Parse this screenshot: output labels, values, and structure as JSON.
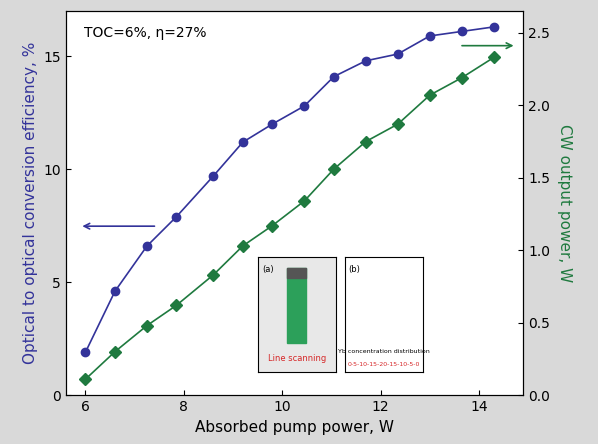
{
  "chart_data": {
    "type": "line",
    "annotations": [
      {
        "text": "TOC=6%, η=27%"
      },
      {
        "text": "(a)"
      },
      {
        "text": "Line scanning",
        "color": "#d62728"
      },
      {
        "text": "(b)"
      },
      {
        "text": "Yb concentration distribution"
      },
      {
        "text": "0-5-10-15-20-15-10-5-0",
        "color": "#d62728"
      }
    ],
    "x_label": "Absorbed pump power, W",
    "y_label": "Optical to optical conversion efficiency, %",
    "y2_label": "CW output power, W",
    "x": [
      6.0,
      6.6,
      7.25,
      7.85,
      8.6,
      9.2,
      9.8,
      10.45,
      11.05,
      11.7,
      12.35,
      13.0,
      13.65,
      14.3
    ],
    "series": [
      {
        "name": "Optical to optical conversion efficiency, %",
        "color": "#33339a",
        "marker": "circle",
        "line_style": "solid",
        "values": [
          1.9,
          4.6,
          6.6,
          7.9,
          9.7,
          11.2,
          12.0,
          12.8,
          14.1,
          14.8,
          15.1,
          15.9,
          16.1,
          16.3
        ]
      },
      {
        "name": "CW output power, W",
        "color": "#1f7a3f",
        "marker": "diamond",
        "line_style": "solid",
        "axis": "y2",
        "values": [
          0.11,
          0.3,
          0.48,
          0.62,
          0.83,
          1.03,
          1.17,
          1.34,
          1.56,
          1.75,
          1.87,
          2.07,
          2.19,
          2.33
        ]
      }
    ],
    "xlim": [
      5.6,
      14.9
    ],
    "xticks": [
      6,
      8,
      10,
      12,
      14
    ],
    "ylim": [
      0,
      17
    ],
    "yticks": [
      0,
      5,
      10,
      15
    ],
    "y2lim": [
      0,
      2.65
    ],
    "y2ticks": [
      {
        "value": 0,
        "label": "0.0"
      },
      0.5,
      {
        "value": 1,
        "label": "1.0"
      },
      1.5,
      {
        "value": 2,
        "label": "2.0"
      },
      2.5
    ],
    "grid": false
  }
}
